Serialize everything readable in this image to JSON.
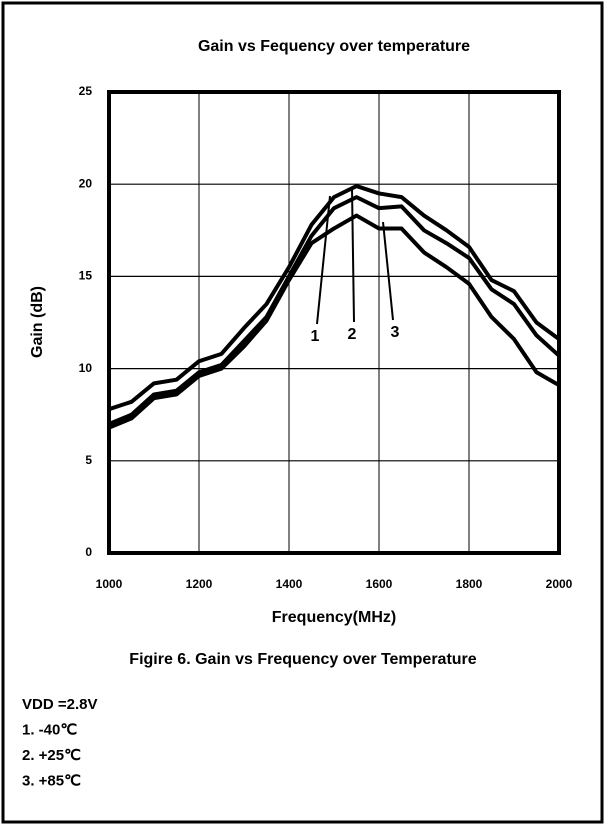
{
  "chart_data": {
    "type": "line",
    "title": "Gain vs Fequency over temperature",
    "x_label": "Frequency(MHz)",
    "y_label": "Gain (dB)",
    "caption": "Figire 6. Gain vs Frequency over Temperature",
    "notes": [
      "VDD =2.8V",
      "1.  -40℃",
      "2.  +25℃",
      "3.  +85℃"
    ],
    "x": [
      1000,
      1050,
      1100,
      1150,
      1200,
      1250,
      1300,
      1350,
      1400,
      1450,
      1500,
      1550,
      1600,
      1650,
      1700,
      1750,
      1800,
      1850,
      1900,
      1950,
      2000
    ],
    "series": [
      {
        "name": "1",
        "color": "#000000",
        "values": [
          7.8,
          8.2,
          9.2,
          9.4,
          10.4,
          10.8,
          12.2,
          13.5,
          15.5,
          17.8,
          19.3,
          19.9,
          19.5,
          19.3,
          18.3,
          17.5,
          16.6,
          14.8,
          14.2,
          12.5,
          11.6
        ]
      },
      {
        "name": "2",
        "color": "#000000",
        "values": [
          7.0,
          7.5,
          8.6,
          8.8,
          9.8,
          10.2,
          11.5,
          12.8,
          15.0,
          17.2,
          18.7,
          19.3,
          18.7,
          18.8,
          17.5,
          16.8,
          16.0,
          14.3,
          13.5,
          11.8,
          10.7
        ]
      },
      {
        "name": "3",
        "color": "#000000",
        "values": [
          6.8,
          7.3,
          8.4,
          8.6,
          9.6,
          10.0,
          11.2,
          12.6,
          14.8,
          16.8,
          17.6,
          18.3,
          17.6,
          17.6,
          16.3,
          15.5,
          14.6,
          12.8,
          11.6,
          9.8,
          9.1
        ]
      }
    ],
    "xlim": [
      1000,
      2000
    ],
    "xticks": [
      1000,
      1200,
      1400,
      1600,
      1800,
      2000
    ],
    "ylim": [
      0,
      25
    ],
    "yticks": [
      0,
      5,
      10,
      15,
      20,
      25
    ],
    "grid": true
  }
}
